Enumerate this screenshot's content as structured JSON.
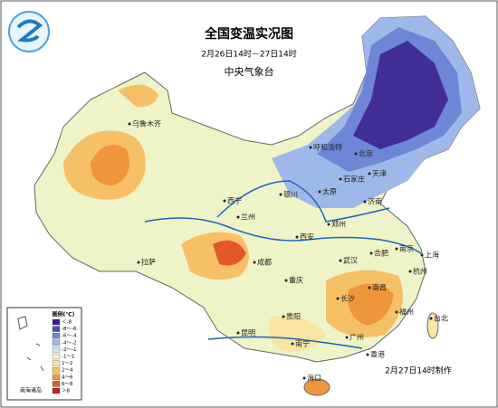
{
  "header": {
    "title": "全国变温实况图",
    "period": "2月26日14时－27日14时",
    "issuer": "中央气象台"
  },
  "cities": [
    "乌鲁木齐",
    "拉萨",
    "西宁",
    "兰州",
    "银川",
    "呼和浩特",
    "北京",
    "天津",
    "石家庄",
    "太原",
    "济南",
    "郑州",
    "西安",
    "成都",
    "重庆",
    "武汉",
    "合肥",
    "南京",
    "上海",
    "杭州",
    "长沙",
    "南昌",
    "福州",
    "贵阳",
    "昆明",
    "南宁",
    "广州",
    "台北",
    "香港",
    "海口"
  ],
  "legend": {
    "title": "图例(℃)",
    "items": [
      {
        "label": "＜-8",
        "color": "#3a1f8c"
      },
      {
        "label": "-8～-6",
        "color": "#4a4fb8"
      },
      {
        "label": "-6～-4",
        "color": "#6f86d6"
      },
      {
        "label": "-4～-2",
        "color": "#9fb8ea"
      },
      {
        "label": "-2～-1",
        "color": "#cfe1f2"
      },
      {
        "label": "-1～1",
        "color": "#eef3c8"
      },
      {
        "label": "1～2",
        "color": "#f8e5a0"
      },
      {
        "label": "2～4",
        "color": "#f6c067"
      },
      {
        "label": "4～6",
        "color": "#f0963a"
      },
      {
        "label": "6～8",
        "color": "#e4572a"
      },
      {
        "label": "＞8",
        "color": "#c0201e"
      }
    ]
  },
  "inset": {
    "label": "南海诸岛"
  },
  "footer": {
    "note": "2月27日14时制作"
  }
}
